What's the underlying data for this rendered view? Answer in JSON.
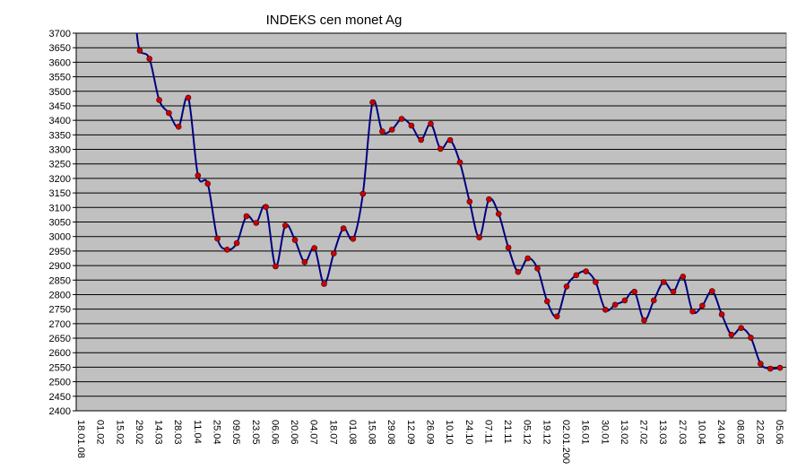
{
  "chart_data": {
    "type": "line",
    "title": "INDEKS cen monet Ag",
    "xlabel": "",
    "ylabel": "",
    "ylim": [
      2400,
      3700
    ],
    "ystep": 50,
    "grid": true,
    "colors": {
      "plot_bg": "#c0c0c0",
      "line": "#000080",
      "marker": "#cc0000",
      "grid": "#000000"
    },
    "x_tick_labels": [
      "18.01.08",
      "01.02",
      "15.02",
      "29.02",
      "14.03",
      "28.03",
      "11.04",
      "25.04",
      "09.05",
      "23.05",
      "06.06",
      "20.06",
      "04.07",
      "18.07",
      "01.08",
      "15.08",
      "29.08",
      "12.09",
      "26.09",
      "10.10",
      "24.10",
      "07.11",
      "21.11",
      "05.12",
      "19.12",
      "02.01.200",
      "16.01",
      "30.01",
      "13.02",
      "27.02",
      "13.03",
      "27.03",
      "10.04",
      "24.04",
      "08.05",
      "22.05",
      "05.06"
    ],
    "series": [
      {
        "values": [
          3640,
          3612,
          3470,
          3425,
          3378,
          3478,
          3210,
          3182,
          2993,
          2955,
          2977,
          3070,
          3047,
          3102,
          2897,
          3038,
          2988,
          2912,
          2960,
          2837,
          2942,
          3028,
          2992,
          3147,
          3462,
          3362,
          3368,
          3405,
          3382,
          3333,
          3388,
          3302,
          3332,
          3255,
          3120,
          2997,
          3128,
          3078,
          2962,
          2878,
          2925,
          2890,
          2777,
          2725,
          2828,
          2867,
          2880,
          2843,
          2748,
          2765,
          2780,
          2810,
          2712,
          2780,
          2843,
          2810,
          2862,
          2742,
          2762,
          2812,
          2732,
          2662,
          2685,
          2652,
          2562,
          2545,
          2548
        ]
      }
    ]
  }
}
